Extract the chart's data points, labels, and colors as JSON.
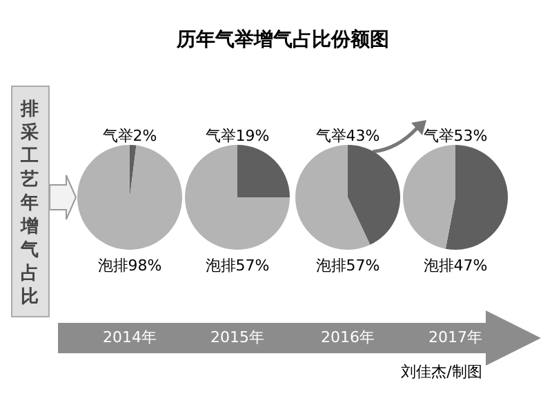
{
  "chart_data": [
    {
      "type": "other",
      "title": "历年气举增气占比份额图",
      "annotations": [
        "排采工艺年增气占比",
        "刘佳杰/制图"
      ]
    },
    {
      "type": "pie",
      "xlabel": "2014年",
      "categories": [
        "气举",
        "泡排"
      ],
      "values": [
        2,
        98
      ],
      "colors": [
        "#5f5f5f",
        "#b4b4b4"
      ],
      "value_labels": [
        "2%",
        "98%"
      ]
    },
    {
      "type": "pie",
      "xlabel": "2015年",
      "categories": [
        "气举",
        "泡排"
      ],
      "values": [
        19,
        57
      ],
      "colors": [
        "#5f5f5f",
        "#b4b4b4"
      ],
      "value_labels": [
        "19%",
        "57%"
      ]
    },
    {
      "type": "pie",
      "xlabel": "2016年",
      "categories": [
        "气举",
        "泡排"
      ],
      "values": [
        43,
        57
      ],
      "colors": [
        "#5f5f5f",
        "#b4b4b4"
      ],
      "value_labels": [
        "43%",
        "57%"
      ]
    },
    {
      "type": "pie",
      "xlabel": "2017年",
      "categories": [
        "气举",
        "泡排"
      ],
      "values": [
        53,
        47
      ],
      "colors": [
        "#5f5f5f",
        "#b4b4b4"
      ],
      "value_labels": [
        "53%",
        "47%"
      ]
    }
  ]
}
